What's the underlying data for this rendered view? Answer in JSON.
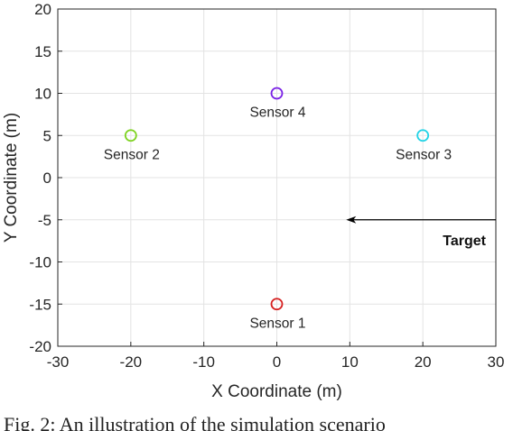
{
  "chart_data": {
    "type": "scatter",
    "title": "",
    "xlabel": "X Coordinate (m)",
    "ylabel": "Y Coordinate (m)",
    "xlim": [
      -30,
      30
    ],
    "ylim": [
      -20,
      20
    ],
    "xticks": [
      -30,
      -20,
      -10,
      0,
      10,
      20,
      30
    ],
    "yticks": [
      -20,
      -15,
      -10,
      -5,
      0,
      5,
      10,
      15,
      20
    ],
    "grid": true,
    "points": [
      {
        "label": "Sensor 1",
        "x": 0,
        "y": -15,
        "color": "#d62222",
        "label_position": "below"
      },
      {
        "label": "Sensor 2",
        "x": -20,
        "y": 5,
        "color": "#7ed321",
        "label_position": "below"
      },
      {
        "label": "Sensor 3",
        "x": 20,
        "y": 5,
        "color": "#22d3e6",
        "label_position": "below"
      },
      {
        "label": "Sensor 4",
        "x": 0,
        "y": 10,
        "color": "#7a22e6",
        "label_position": "below"
      }
    ],
    "annotations": [
      {
        "type": "arrow",
        "text": "Target",
        "from": [
          30,
          -5
        ],
        "to": [
          9.5,
          -5
        ],
        "color": "#000000"
      }
    ]
  },
  "caption": "Fig. 2: An illustration of the simulation scenario"
}
